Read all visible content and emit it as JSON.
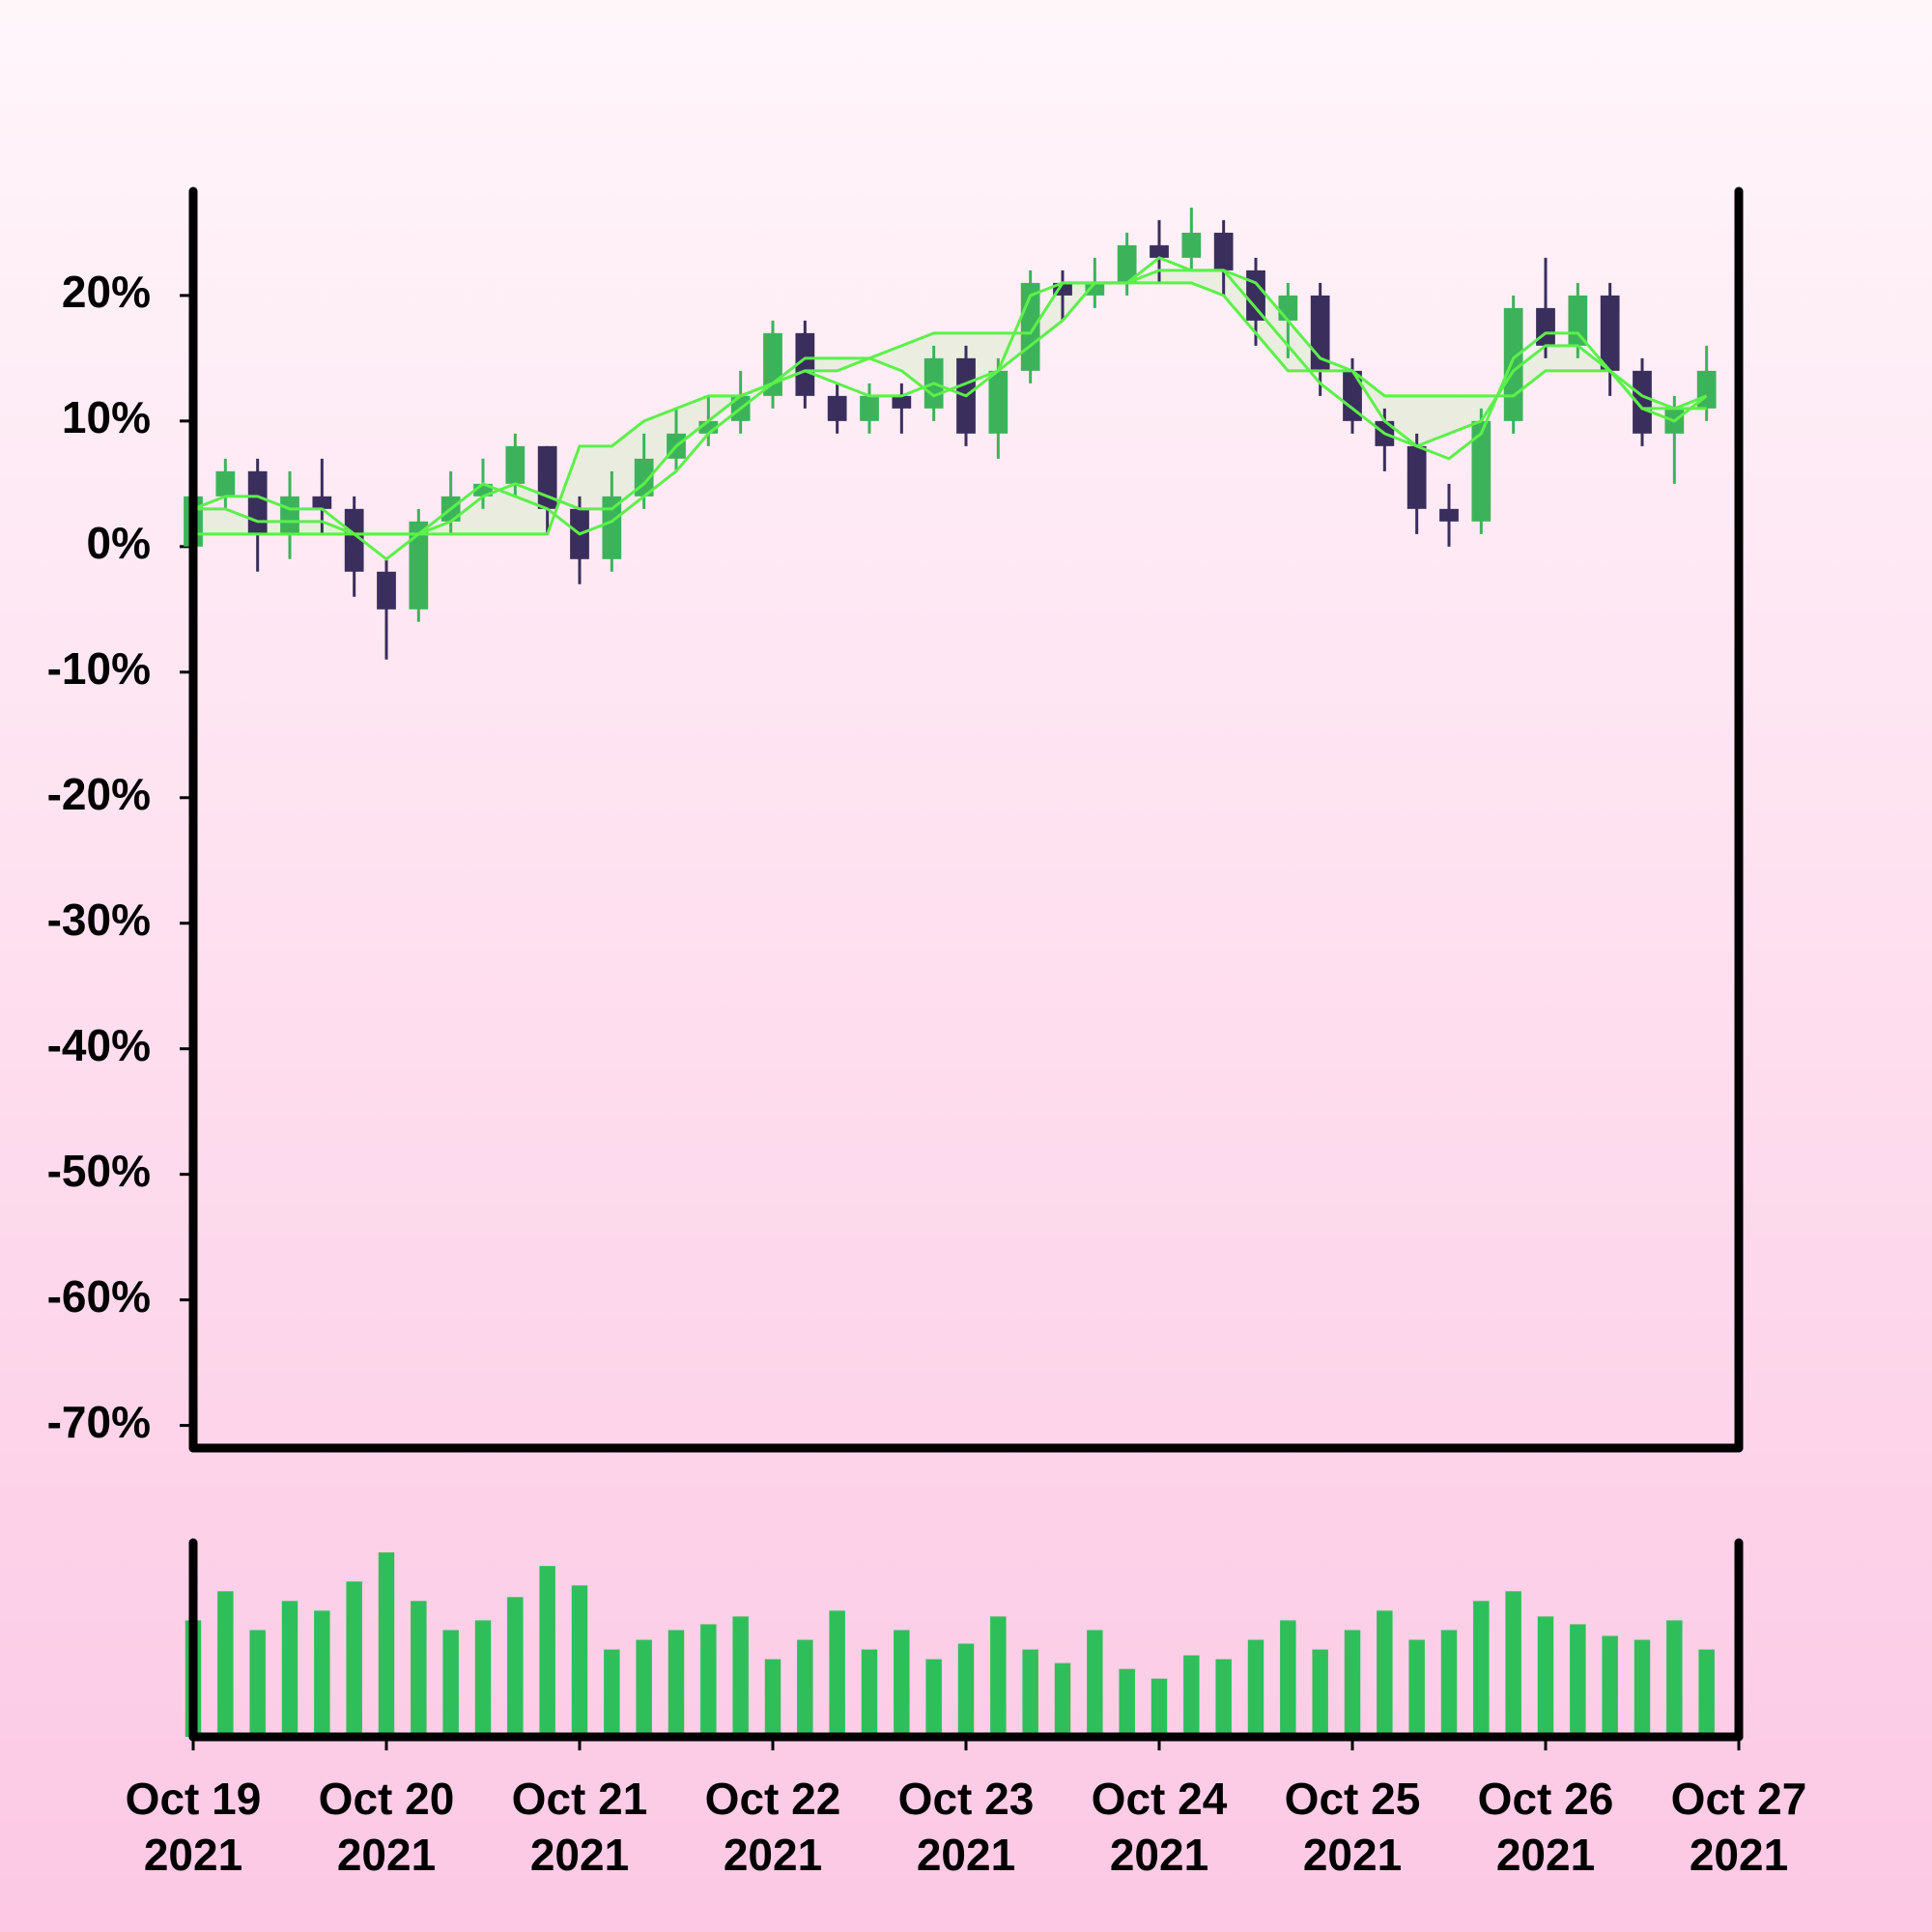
{
  "chart_data": {
    "type": "candlestick",
    "x": [
      "2021-10-19T00:00",
      "2021-10-19T04:00",
      "2021-10-19T08:00",
      "2021-10-19T12:00",
      "2021-10-19T16:00",
      "2021-10-19T20:00",
      "2021-10-20T00:00",
      "2021-10-20T04:00",
      "2021-10-20T08:00",
      "2021-10-20T12:00",
      "2021-10-20T16:00",
      "2021-10-20T20:00",
      "2021-10-21T00:00",
      "2021-10-21T04:00",
      "2021-10-21T08:00",
      "2021-10-21T12:00",
      "2021-10-21T16:00",
      "2021-10-21T20:00",
      "2021-10-22T00:00",
      "2021-10-22T04:00",
      "2021-10-22T08:00",
      "2021-10-22T12:00",
      "2021-10-22T16:00",
      "2021-10-22T20:00",
      "2021-10-23T00:00",
      "2021-10-23T04:00",
      "2021-10-23T08:00",
      "2021-10-23T12:00",
      "2021-10-23T16:00",
      "2021-10-23T20:00",
      "2021-10-24T00:00",
      "2021-10-24T04:00",
      "2021-10-24T08:00",
      "2021-10-24T12:00",
      "2021-10-24T16:00",
      "2021-10-24T20:00",
      "2021-10-25T00:00",
      "2021-10-25T04:00",
      "2021-10-25T08:00",
      "2021-10-25T12:00",
      "2021-10-25T16:00",
      "2021-10-25T20:00",
      "2021-10-26T00:00",
      "2021-10-26T04:00",
      "2021-10-26T08:00",
      "2021-10-26T12:00",
      "2021-10-26T16:00",
      "2021-10-26T20:00"
    ],
    "open": [
      0,
      4,
      6,
      1,
      4,
      3,
      -2,
      -5,
      2,
      4,
      5,
      8,
      3,
      -1,
      4,
      7,
      9,
      10,
      12,
      17,
      12,
      10,
      12,
      11,
      15,
      9,
      14,
      21,
      20,
      21,
      24,
      23,
      25,
      22,
      18,
      20,
      14,
      10,
      8,
      3,
      2,
      10,
      19,
      16,
      20,
      14,
      9,
      11
    ],
    "high": [
      6,
      7,
      7,
      6,
      7,
      4,
      -1,
      3,
      6,
      7,
      9,
      8,
      4,
      6,
      9,
      11,
      12,
      14,
      18,
      18,
      13,
      13,
      13,
      16,
      16,
      15,
      22,
      22,
      23,
      25,
      26,
      27,
      26,
      23,
      21,
      21,
      15,
      11,
      9,
      5,
      11,
      20,
      23,
      21,
      21,
      15,
      12,
      16
    ],
    "low": [
      0,
      3,
      -2,
      -1,
      1,
      -4,
      -9,
      -6,
      1,
      3,
      4,
      1,
      -3,
      -2,
      3,
      6,
      8,
      9,
      11,
      11,
      9,
      9,
      9,
      10,
      8,
      7,
      13,
      18,
      19,
      20,
      21,
      22,
      20,
      16,
      15,
      12,
      9,
      6,
      1,
      0,
      1,
      9,
      15,
      15,
      12,
      8,
      5,
      10
    ],
    "close": [
      4,
      6,
      1,
      4,
      3,
      -2,
      -5,
      2,
      4,
      5,
      8,
      3,
      -1,
      4,
      7,
      9,
      10,
      12,
      17,
      12,
      10,
      12,
      11,
      15,
      9,
      14,
      21,
      20,
      21,
      24,
      23,
      25,
      22,
      18,
      20,
      14,
      10,
      8,
      3,
      2,
      10,
      19,
      16,
      20,
      14,
      9,
      11,
      14
    ],
    "up_color": "#3cb35a",
    "down_color": "#3a2e5c",
    "overlays": [
      {
        "color": "#5cf04a",
        "values": [
          3,
          3,
          2,
          2,
          2,
          1,
          1,
          1,
          2,
          4,
          5,
          4,
          3,
          3,
          5,
          8,
          10,
          12,
          13,
          14,
          14,
          15,
          14,
          12,
          13,
          14,
          16,
          18,
          21,
          21,
          22,
          22,
          22,
          21,
          18,
          15,
          14,
          10,
          8,
          9,
          10,
          14,
          16,
          16,
          14,
          12,
          11,
          12
        ]
      },
      {
        "color": "#5cf04a",
        "values": [
          1,
          1,
          1,
          1,
          1,
          1,
          1,
          1,
          1,
          1,
          1,
          1,
          8,
          8,
          10,
          11,
          12,
          12,
          13,
          15,
          15,
          15,
          16,
          17,
          17,
          17,
          17,
          21,
          21,
          21,
          21,
          21,
          20,
          17,
          14,
          14,
          14,
          12,
          12,
          12,
          12,
          12,
          14,
          14,
          14,
          11,
          11,
          11
        ]
      },
      {
        "color": "#5cf04a",
        "values": [
          3,
          4,
          4,
          3,
          3,
          1,
          -1,
          1,
          3,
          5,
          4,
          3,
          1,
          2,
          4,
          6,
          9,
          11,
          13,
          14,
          13,
          12,
          12,
          13,
          12,
          14,
          20,
          21,
          21,
          21,
          23,
          22,
          22,
          19,
          16,
          13,
          11,
          9,
          8,
          7,
          9,
          15,
          17,
          17,
          14,
          11,
          10,
          12
        ]
      }
    ],
    "cloud_color": "#e6ecdc",
    "volume": [
      60,
      75,
      55,
      70,
      65,
      80,
      95,
      70,
      55,
      60,
      72,
      88,
      78,
      45,
      50,
      55,
      58,
      62,
      40,
      50,
      65,
      45,
      55,
      40,
      48,
      62,
      45,
      38,
      55,
      35,
      30,
      42,
      40,
      50,
      60,
      45,
      55,
      65,
      50,
      55,
      70,
      75,
      62,
      58,
      52,
      50,
      60,
      45
    ],
    "volume_color": "#2fbf5a",
    "volume_ylim": [
      0,
      100
    ],
    "xlim": [
      "2021-10-19T00:00",
      "2021-10-27T00:00"
    ],
    "xticks": [
      {
        "value": "2021-10-19T00:00",
        "label": [
          "Oct 19",
          "2021"
        ]
      },
      {
        "value": "2021-10-20T00:00",
        "label": [
          "Oct 20",
          "2021"
        ]
      },
      {
        "value": "2021-10-21T00:00",
        "label": [
          "Oct 21",
          "2021"
        ]
      },
      {
        "value": "2021-10-22T00:00",
        "label": [
          "Oct 22",
          "2021"
        ]
      },
      {
        "value": "2021-10-23T00:00",
        "label": [
          "Oct 23",
          "2021"
        ]
      },
      {
        "value": "2021-10-24T00:00",
        "label": [
          "Oct 24",
          "2021"
        ]
      },
      {
        "value": "2021-10-25T00:00",
        "label": [
          "Oct 25",
          "2021"
        ]
      },
      {
        "value": "2021-10-26T00:00",
        "label": [
          "Oct 26",
          "2021"
        ]
      },
      {
        "value": "2021-10-27T00:00",
        "label": [
          "Oct 27",
          "2021"
        ]
      }
    ],
    "ylim": [
      -71.8,
      28.3
    ],
    "yticks": [
      {
        "value": 20,
        "label": "20%"
      },
      {
        "value": 10,
        "label": "10%"
      },
      {
        "value": 0,
        "label": "0%"
      },
      {
        "value": -10,
        "label": "-10%"
      },
      {
        "value": -20,
        "label": "-20%"
      },
      {
        "value": -30,
        "label": "-30%"
      },
      {
        "value": -40,
        "label": "-40%"
      },
      {
        "value": -50,
        "label": "-50%"
      },
      {
        "value": -60,
        "label": "-60%"
      },
      {
        "value": -70,
        "label": "-70%"
      }
    ]
  }
}
